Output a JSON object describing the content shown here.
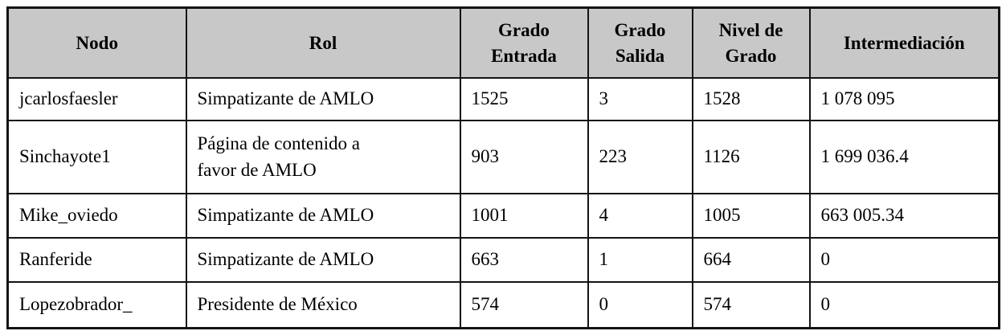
{
  "table": {
    "headers": [
      {
        "label": "Nodo"
      },
      {
        "label": "Rol"
      },
      {
        "label": "Grado\nEntrada"
      },
      {
        "label": "Grado\nSalida"
      },
      {
        "label": "Nivel de\nGrado"
      },
      {
        "label": "Intermediación"
      }
    ],
    "rows": [
      {
        "nodo": "jcarlosfaesler",
        "rol": "Simpatizante de AMLO",
        "grado_entrada": "1525",
        "grado_salida": "3",
        "nivel_de_grado": "1528",
        "intermediacion": "1 078 095"
      },
      {
        "nodo": "Sinchayote1",
        "rol": "Página de contenido a\nfavor de AMLO",
        "grado_entrada": "903",
        "grado_salida": "223",
        "nivel_de_grado": "1126",
        "intermediacion": "1 699 036.4"
      },
      {
        "nodo": "Mike_oviedo",
        "rol": "Simpatizante de AMLO",
        "grado_entrada": "1001",
        "grado_salida": "4",
        "nivel_de_grado": "1005",
        "intermediacion": "663 005.34"
      },
      {
        "nodo": "Ranferide",
        "rol": "Simpatizante de AMLO",
        "grado_entrada": "663",
        "grado_salida": "1",
        "nivel_de_grado": "664",
        "intermediacion": "0"
      },
      {
        "nodo": "Lopezobrador_",
        "rol": "Presidente de México",
        "grado_entrada": "574",
        "grado_salida": "0",
        "nivel_de_grado": "574",
        "intermediacion": "0"
      }
    ]
  },
  "colors": {
    "header_bg": "#c8c8c8",
    "border": "#141414",
    "text": "#000000"
  }
}
